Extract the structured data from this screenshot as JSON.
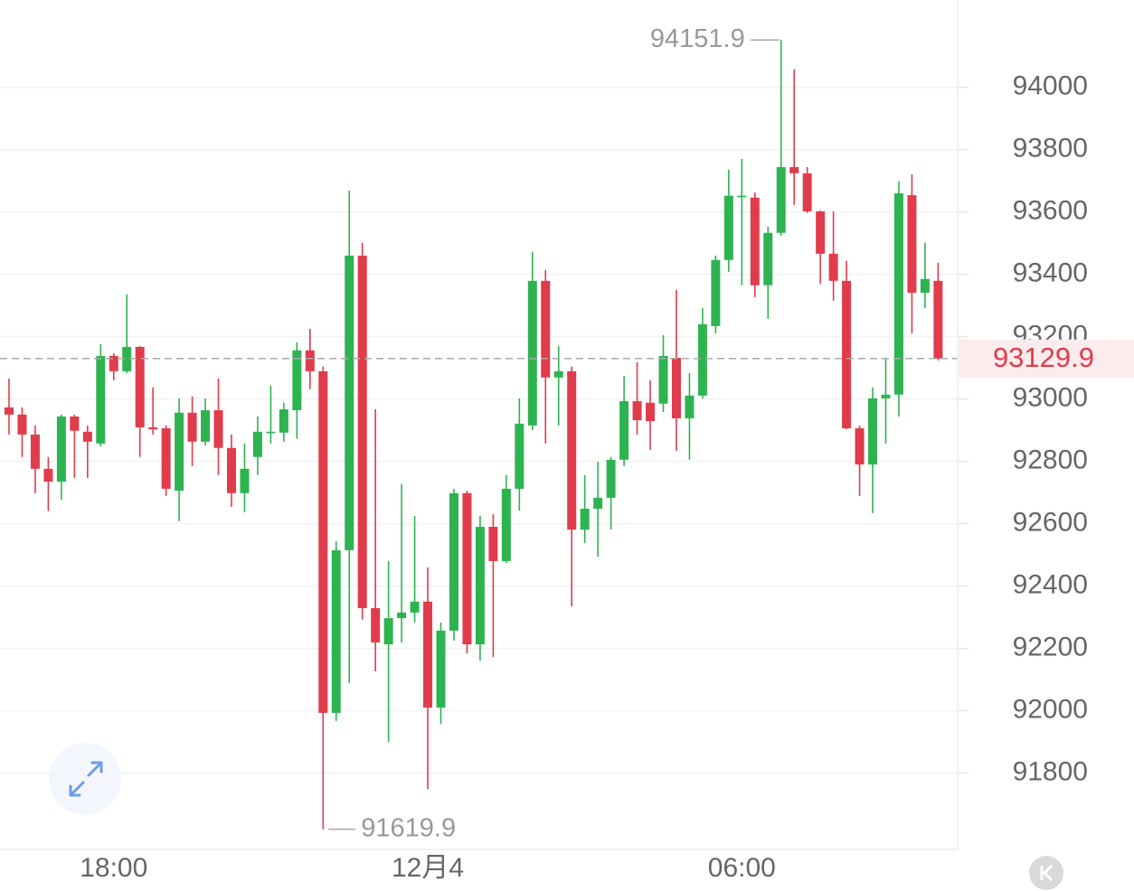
{
  "chart_data": {
    "type": "candlestick",
    "categories": [
      null,
      null,
      null,
      null,
      null,
      null,
      null,
      null,
      "18:00",
      null,
      null,
      null,
      null,
      null,
      null,
      null,
      null,
      null,
      null,
      null,
      null,
      null,
      null,
      null,
      null,
      null,
      null,
      null,
      null,
      null,
      null,
      null,
      "12月4",
      null,
      null,
      null,
      null,
      null,
      null,
      null,
      null,
      null,
      null,
      null,
      null,
      null,
      null,
      null,
      null,
      null,
      null,
      null,
      null,
      null,
      null,
      null,
      "06:00",
      null,
      null,
      null,
      null,
      null,
      null,
      null,
      null,
      null,
      null,
      null,
      null,
      null,
      null,
      null
    ],
    "open": [
      92973,
      92950,
      92886,
      92776,
      92735,
      92944,
      92895,
      92857,
      93138,
      93089,
      93167,
      92909,
      92906,
      92706,
      92956,
      92863,
      92964,
      92843,
      92698,
      92814,
      92892,
      92892,
      92964,
      93156,
      93089,
      91993,
      92515,
      93460,
      92329,
      92213,
      92297,
      92315,
      92350,
      92010,
      92257,
      92698,
      92213,
      92590,
      92480,
      92712,
      92915,
      93379,
      93069,
      93089,
      92581,
      92648,
      92683,
      92805,
      92993,
      92988,
      92985,
      93132,
      92938,
      93011,
      93234,
      93446,
      93649,
      93646,
      93365,
      93533,
      93744,
      93724,
      93602,
      93466,
      93379,
      92906,
      92790,
      93002,
      93014,
      93654,
      93341,
      93379
    ],
    "high": [
      93066,
      92973,
      92915,
      92814,
      92950,
      92950,
      92915,
      93176,
      93147,
      93336,
      93170,
      93037,
      92915,
      93002,
      93008,
      93002,
      93066,
      92886,
      92857,
      92944,
      93043,
      92988,
      93182,
      93225,
      93104,
      92544,
      93669,
      93501,
      92967,
      92480,
      92727,
      92625,
      92460,
      92283,
      92712,
      92706,
      92625,
      92631,
      92756,
      93002,
      93472,
      93414,
      93170,
      93104,
      92756,
      92799,
      92814,
      93074,
      93118,
      93060,
      93205,
      93350,
      93083,
      93292,
      93460,
      93736,
      93770,
      93663,
      93553,
      94151.9,
      94058,
      93744,
      93605,
      93602,
      93443,
      92915,
      93037,
      93132,
      93698,
      93721,
      93501,
      93437
    ],
    "low": [
      92886,
      92814,
      92698,
      92640,
      92677,
      92747,
      92747,
      92848,
      93060,
      93083,
      92814,
      92886,
      92689,
      92608,
      92785,
      92851,
      92756,
      92654,
      92637,
      92756,
      92857,
      92863,
      92872,
      93031,
      91619.9,
      91967,
      92089,
      92292,
      92126,
      91900,
      92219,
      92283,
      91749,
      91958,
      92225,
      92184,
      92161,
      92173,
      92474,
      92642,
      92900,
      92857,
      92915,
      92335,
      92538,
      92494,
      92581,
      92785,
      92886,
      92837,
      92958,
      92834,
      92805,
      93002,
      93211,
      93408,
      93365,
      93327,
      93257,
      93524,
      93623,
      93597,
      93370,
      93315,
      92903,
      92689,
      92634,
      92857,
      92944,
      93211,
      93292,
      93124
    ],
    "close": [
      92950,
      92886,
      92776,
      92735,
      92944,
      92898,
      92863,
      93138,
      93089,
      93167,
      92909,
      92903,
      92712,
      92956,
      92863,
      92964,
      92843,
      92698,
      92776,
      92895,
      92895,
      92967,
      93156,
      93089,
      91993,
      92515,
      93460,
      92329,
      92219,
      92297,
      92315,
      92350,
      92010,
      92257,
      92698,
      92213,
      92590,
      92480,
      92712,
      92921,
      93379,
      93069,
      93089,
      92581,
      92648,
      92683,
      92805,
      92993,
      92932,
      92929,
      93138,
      92938,
      93011,
      93240,
      93446,
      93652,
      93652,
      93365,
      93533,
      93744,
      93724,
      93602,
      93466,
      93379,
      92906,
      92790,
      93002,
      93014,
      93660,
      93341,
      93385,
      93129.9
    ],
    "up_color": "#2eb351",
    "down_color": "#e03c4b",
    "ylim": [
      91555,
      94280
    ],
    "yticks": [
      91800,
      92000,
      92200,
      92400,
      92600,
      92800,
      93000,
      93200,
      93400,
      93600,
      93800,
      94000
    ],
    "grid": true
  }
}
